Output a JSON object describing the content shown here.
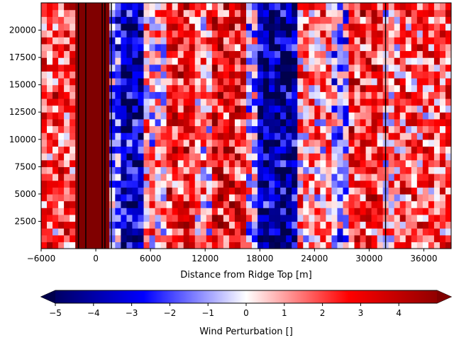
{
  "chart_data": {
    "type": "heatmap",
    "title": "",
    "xlabel": "Distance from Ridge Top [m]",
    "ylabel": "",
    "xlim": [
      -6000,
      39000
    ],
    "ylim": [
      0,
      22500
    ],
    "x_ticks": [
      -6000,
      0,
      6000,
      12000,
      18000,
      24000,
      30000,
      36000
    ],
    "x_tick_labels": [
      "−6000",
      "0",
      "6000",
      "12000",
      "18000",
      "24000",
      "30000",
      "36000"
    ],
    "y_ticks": [
      2500,
      5000,
      7500,
      10000,
      12500,
      15000,
      17500,
      20000
    ],
    "y_tick_labels": [
      "2500",
      "5000",
      "7500",
      "10000",
      "12500",
      "15000",
      "17500",
      "20000"
    ],
    "colormap": "seismic",
    "colorbar": {
      "label": "Wind Perturbation []",
      "range": [
        -5,
        5
      ],
      "extend": "both",
      "ticks": [
        -5,
        -4,
        -3,
        -2,
        -1,
        0,
        1,
        2,
        3,
        4
      ],
      "tick_labels": [
        "−5",
        "−4",
        "−3",
        "−2",
        "−1",
        "0",
        "1",
        "2",
        "3",
        "4"
      ]
    },
    "bands": [
      {
        "x_start": -6000,
        "x_end": -2500,
        "mean": 1.8
      },
      {
        "x_start": -2500,
        "x_end": 1800,
        "mean": 5.0
      },
      {
        "x_start": 1800,
        "x_end": 2500,
        "mean": -1.5
      },
      {
        "x_start": 2500,
        "x_end": 5500,
        "mean": -3.5
      },
      {
        "x_start": 5500,
        "x_end": 7500,
        "mean": 0.5
      },
      {
        "x_start": 7500,
        "x_end": 11000,
        "mean": 2.5
      },
      {
        "x_start": 11000,
        "x_end": 13000,
        "mean": 0.8
      },
      {
        "x_start": 13000,
        "x_end": 16500,
        "mean": 2.8
      },
      {
        "x_start": 16500,
        "x_end": 17800,
        "mean": -0.5
      },
      {
        "x_start": 17800,
        "x_end": 22000,
        "mean": -3.8
      },
      {
        "x_start": 22000,
        "x_end": 26000,
        "mean": 1.0
      },
      {
        "x_start": 26000,
        "x_end": 28000,
        "mean": -0.8
      },
      {
        "x_start": 28000,
        "x_end": 31800,
        "mean": 2.2
      },
      {
        "x_start": 31800,
        "x_end": 33000,
        "mean": 0.5
      },
      {
        "x_start": 33000,
        "x_end": 39000,
        "mean": 1.5
      }
    ],
    "vertical_lines_x": [
      -1900,
      -1100,
      700,
      1000,
      1700,
      31800
    ]
  }
}
